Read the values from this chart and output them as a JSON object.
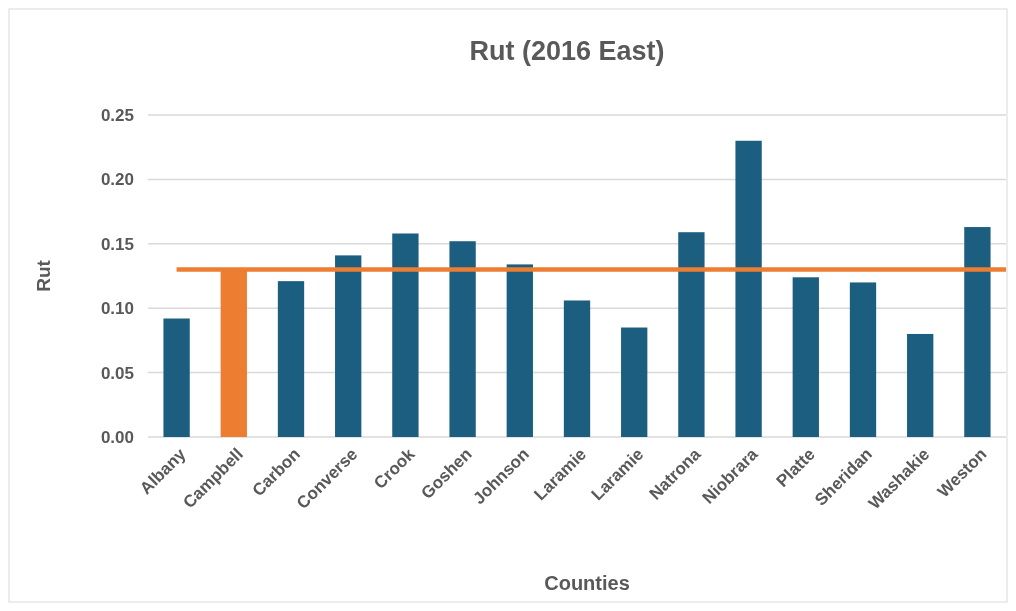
{
  "chart_data": {
    "type": "bar",
    "title": "Rut (2016 East)",
    "xlabel": "Counties",
    "ylabel": "Rut",
    "categories": [
      "Albany",
      "Campbell",
      "Carbon",
      "Converse",
      "Crook",
      "Goshen",
      "Johnson",
      "Laramie",
      "Laramie",
      "Natrona",
      "Niobrara",
      "Platte",
      "Sheridan",
      "Washakie",
      "Weston"
    ],
    "values": [
      0.092,
      0.13,
      0.121,
      0.141,
      0.158,
      0.152,
      0.134,
      0.106,
      0.085,
      0.159,
      0.23,
      0.124,
      0.12,
      0.08,
      0.163
    ],
    "colors": [
      "#1b5e80",
      "#ed7d31",
      "#1b5e80",
      "#1b5e80",
      "#1b5e80",
      "#1b5e80",
      "#1b5e80",
      "#1b5e80",
      "#1b5e80",
      "#1b5e80",
      "#1b5e80",
      "#1b5e80",
      "#1b5e80",
      "#1b5e80",
      "#1b5e80"
    ],
    "ylim": [
      0,
      0.25
    ],
    "yticks": [
      {
        "value": 0,
        "label": "0.00"
      },
      {
        "value": 0.05,
        "label": "0.05"
      },
      {
        "value": 0.1,
        "label": "0.10"
      },
      {
        "value": 0.15,
        "label": "0.15"
      },
      {
        "value": 0.2,
        "label": "0.20"
      },
      {
        "value": 0.25,
        "label": "0.25"
      }
    ],
    "grid": "y",
    "ref_lines": [
      {
        "axis": "y",
        "value": 0.13,
        "color": "#ed7d31"
      }
    ]
  }
}
